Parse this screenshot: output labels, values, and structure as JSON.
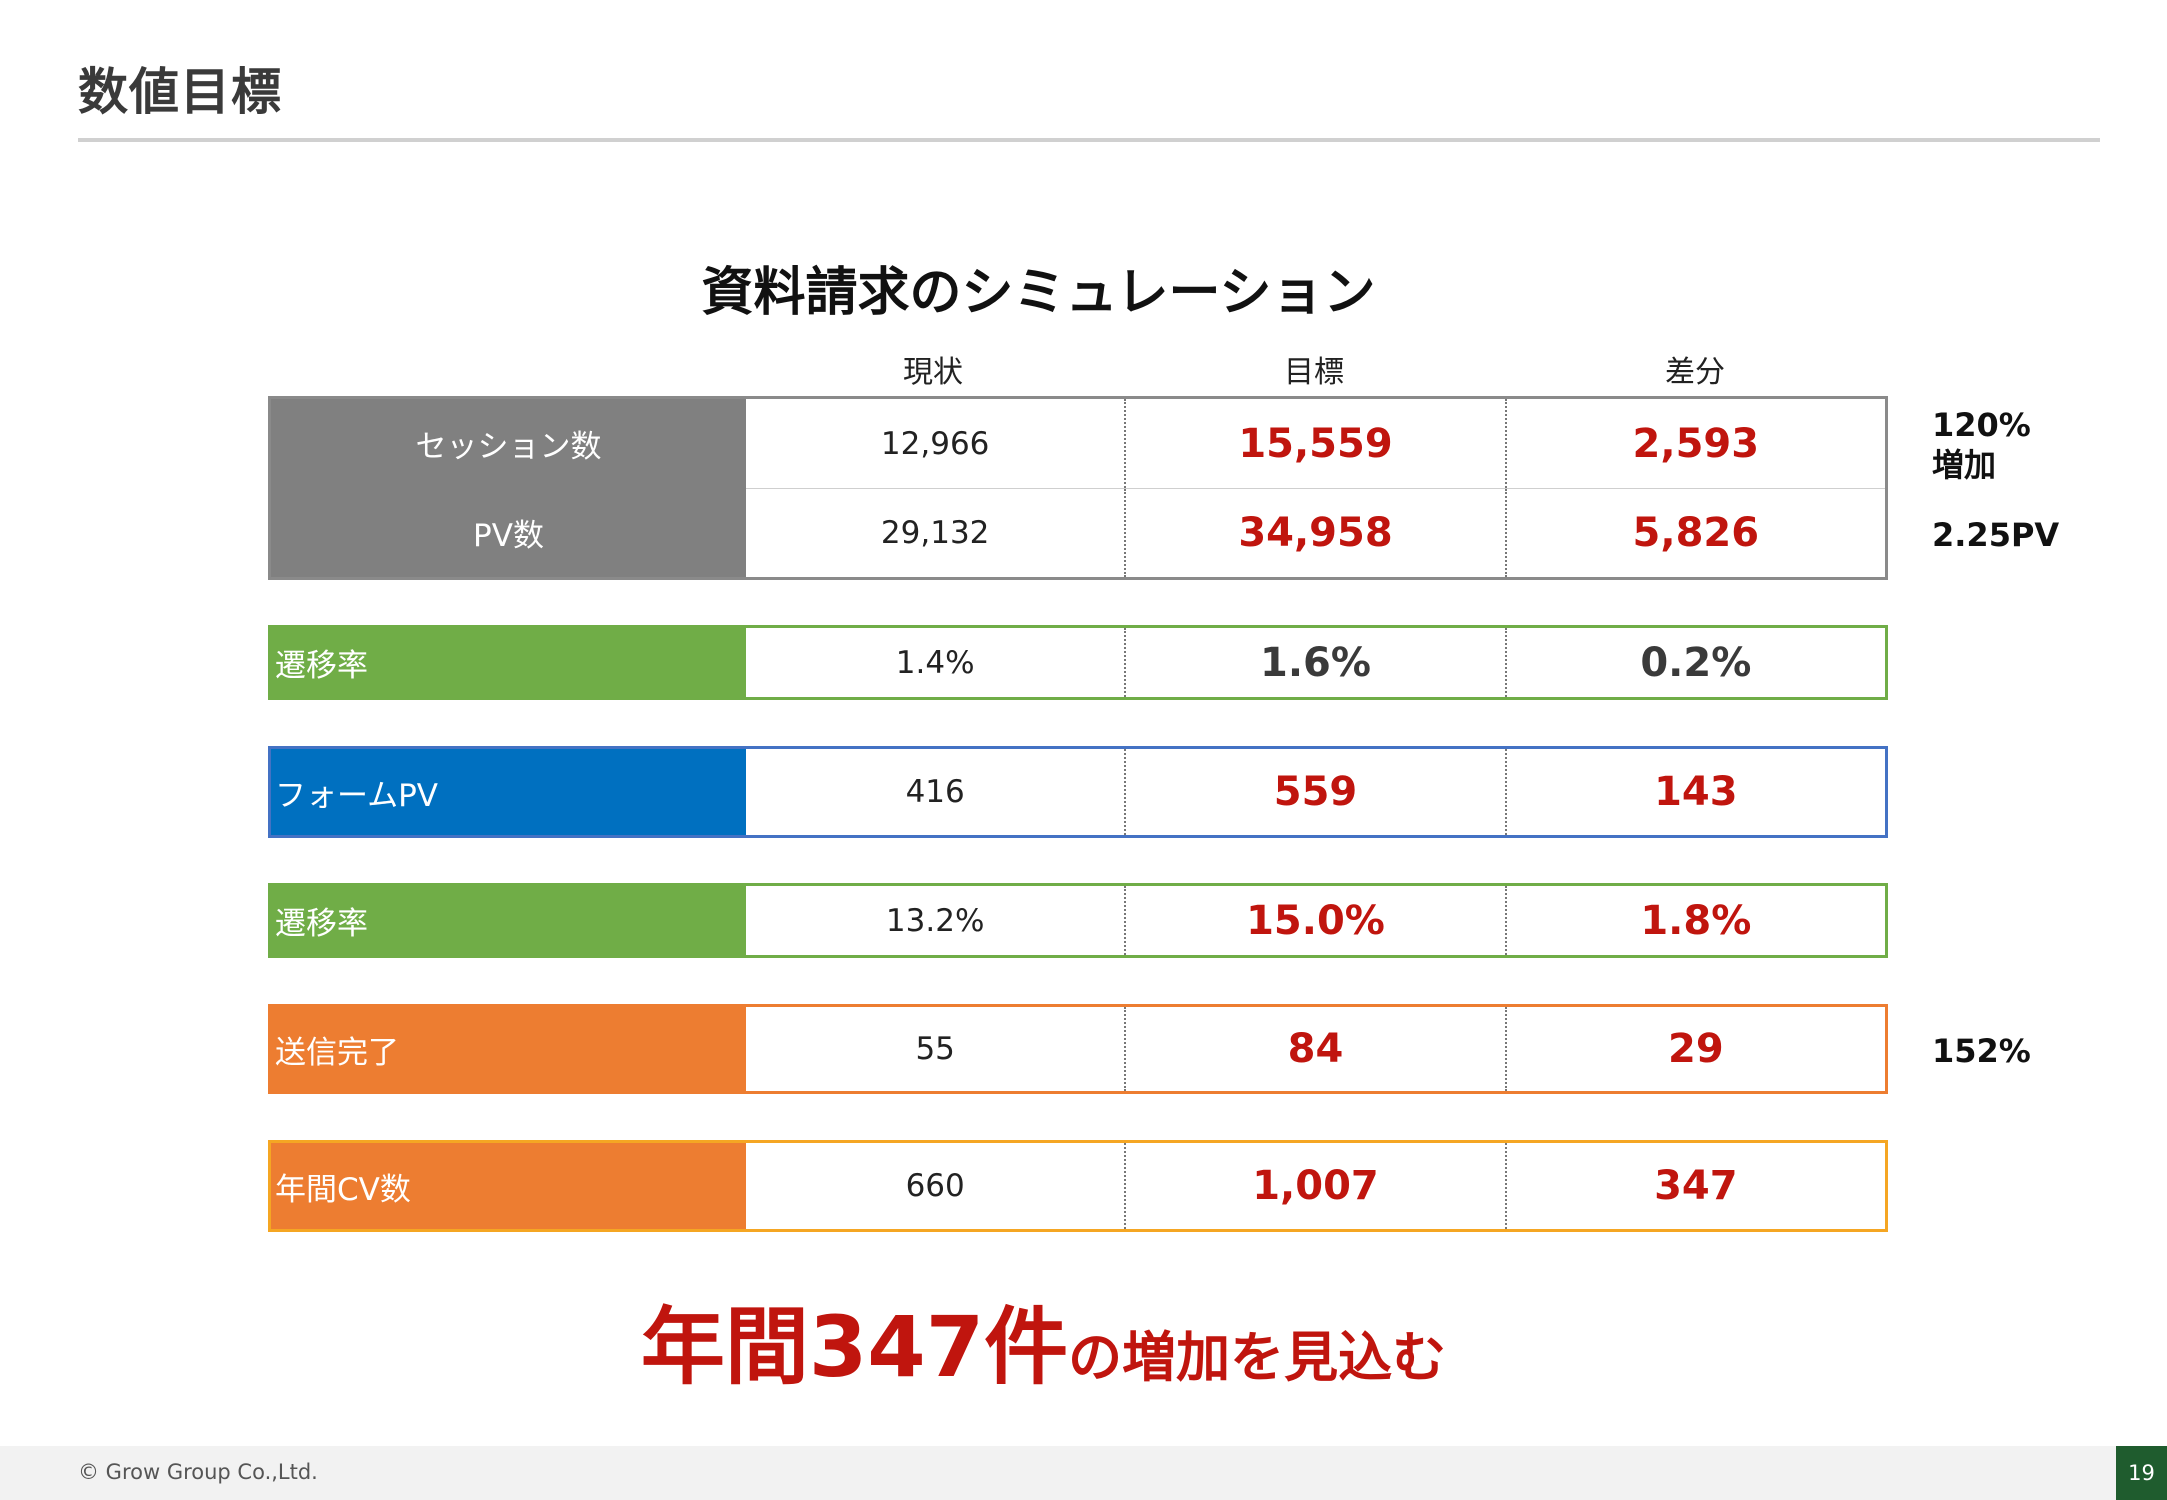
{
  "header": {
    "title": "数値目標"
  },
  "simulation": {
    "title": "資料請求のシミュレーション",
    "columns": [
      "現状",
      "目標",
      "差分"
    ],
    "block1": {
      "rows": [
        {
          "label": "セッション数",
          "current": "12,966",
          "target": "15,559",
          "diff": "2,593"
        },
        {
          "label": "PV数",
          "current": "29,132",
          "target": "34,958",
          "diff": "5,826"
        }
      ]
    },
    "rows": [
      {
        "label": "遷移率",
        "current": "1.4%",
        "target": "1.6%",
        "diff": "0.2%",
        "color": "#70ad47"
      },
      {
        "label": "フォームPV",
        "current": "416",
        "target": "559",
        "diff": "143",
        "color": "#0070c0"
      },
      {
        "label": "遷移率",
        "current": "13.2%",
        "target": "15.0%",
        "diff": "1.8%",
        "color": "#70ad47"
      },
      {
        "label": "送信完了",
        "current": "55",
        "target": "84",
        "diff": "29",
        "color": "#ed7d31"
      },
      {
        "label": "年間CV数",
        "current": "660",
        "target": "1,007",
        "diff": "347",
        "color": "#ed7d31"
      }
    ],
    "notes": {
      "session_line1": "120%",
      "session_line2": "増加",
      "pv": "2.25PV",
      "submit": "152%"
    }
  },
  "headline": {
    "big": "年間347件",
    "small": "の増加を見込む"
  },
  "footer": {
    "copyright": "© Grow Group Co.,Ltd.",
    "page": "19"
  },
  "colors": {
    "accent_red": "#c0150e",
    "gray": "#808080",
    "green": "#70ad47",
    "blue": "#0070c0",
    "orange": "#ed7d31"
  }
}
